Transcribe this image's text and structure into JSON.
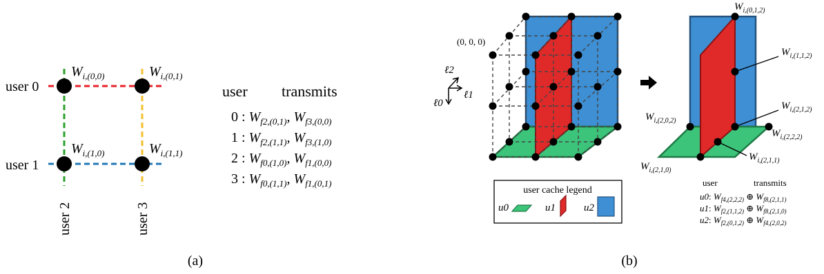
{
  "panel_a": {
    "caption": "(a)",
    "users": {
      "u0": "user 0",
      "u1": "user 1",
      "u2": "user 2",
      "u3": "user 3"
    },
    "nodes": {
      "n00": {
        "w": "W",
        "sub": "i,(0,0)"
      },
      "n01": {
        "w": "W",
        "sub": "i,(0,1)"
      },
      "n10": {
        "w": "W",
        "sub": "i,(1,0)"
      },
      "n11": {
        "w": "W",
        "sub": "i,(1,1)"
      }
    },
    "table": {
      "header_user": "user",
      "header_transmits": "transmits",
      "rows": [
        {
          "user": "0",
          "a": "f2,(0,1)",
          "b": "f3,(0,0)"
        },
        {
          "user": "1",
          "a": "f2,(1,1)",
          "b": "f3,(1,0)"
        },
        {
          "user": "2",
          "a": "f0,(1,0)",
          "b": "f1,(0,0)"
        },
        {
          "user": "3",
          "a": "f0,(1,1)",
          "b": "f1,(0,1)"
        }
      ]
    },
    "colors": {
      "red": "#e8202a",
      "blue": "#1f77b4",
      "green": "#2ca02c",
      "yellow": "#f2c12e"
    }
  },
  "panel_b": {
    "caption": "(b)",
    "origin": "(0, 0, 0)",
    "axes": {
      "l0": "ℓ0",
      "l1": "ℓ1",
      "l2": "ℓ2"
    },
    "legend": {
      "title": "user cache legend",
      "u0": "u0",
      "u1": "u1",
      "u2": "u2"
    },
    "labels": {
      "w012": "i,(0,1,2)",
      "w112": "i,(1,1,2)",
      "w212": "i,(2,1,2)",
      "w202": "i,(2,0,2)",
      "w222": "i,(2,2,2)",
      "w211": "i,(2,1,1)",
      "w210": "i,(2,1,0)"
    },
    "table": {
      "header_user": "user",
      "header_transmits": "transmits",
      "rows": [
        {
          "user": "u0",
          "a": "f4,(2,2,2)",
          "b": "f8,(2,1,1)"
        },
        {
          "user": "u1",
          "a": "f2,(1,1,2)",
          "b": "f8,(2,1,0)"
        },
        {
          "user": "u2",
          "a": "f2,(0,1,2)",
          "b": "f4,(2,0,2)"
        }
      ]
    },
    "colors": {
      "green": "#3cc47a",
      "red": "#e02a2a",
      "blue": "#3e8fd4"
    }
  }
}
